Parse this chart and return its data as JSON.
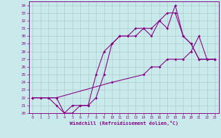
{
  "xlabel": "Windchill (Refroidissement éolien,°C)",
  "background_color": "#c8eaea",
  "line_color": "#880088",
  "grid_color": "#b0c8c8",
  "xlim": [
    -0.5,
    23.5
  ],
  "ylim": [
    20,
    34.5
  ],
  "xticks": [
    0,
    1,
    2,
    3,
    4,
    5,
    6,
    7,
    8,
    9,
    10,
    11,
    12,
    13,
    14,
    15,
    16,
    17,
    18,
    19,
    20,
    21,
    22,
    23
  ],
  "yticks": [
    20,
    21,
    22,
    23,
    24,
    25,
    26,
    27,
    28,
    29,
    30,
    31,
    32,
    33,
    34
  ],
  "line1_x": [
    0,
    1,
    2,
    3,
    4,
    5,
    6,
    7,
    8,
    9,
    10,
    11,
    12,
    13,
    14,
    15,
    16,
    17,
    18,
    19,
    20,
    21,
    22,
    23
  ],
  "line1_y": [
    22,
    22,
    22,
    21,
    20,
    20,
    21,
    21,
    22,
    25,
    29,
    30,
    30,
    31,
    31,
    30,
    32,
    31,
    34,
    30,
    29,
    27,
    27,
    27
  ],
  "line2_x": [
    0,
    1,
    2,
    3,
    4,
    5,
    6,
    7,
    8,
    9,
    10,
    11,
    12,
    13,
    14,
    15,
    16,
    17,
    18,
    19,
    20,
    21,
    22,
    23
  ],
  "line2_y": [
    22,
    22,
    22,
    22,
    20,
    21,
    21,
    21,
    25,
    28,
    29,
    30,
    30,
    30,
    31,
    31,
    32,
    33,
    33,
    30,
    29,
    27,
    27,
    27
  ],
  "line3_x": [
    0,
    3,
    10,
    14,
    15,
    16,
    17,
    18,
    19,
    20,
    21,
    22,
    23
  ],
  "line3_y": [
    22,
    22,
    24,
    25,
    26,
    26,
    27,
    27,
    27,
    28,
    30,
    27,
    27
  ]
}
